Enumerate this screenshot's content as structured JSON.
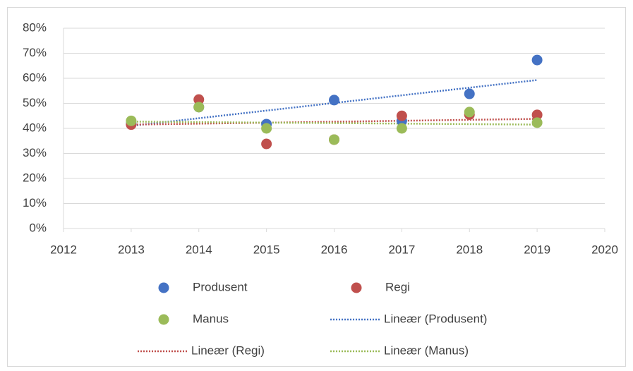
{
  "chart_data": {
    "type": "scatter",
    "xlim": [
      2012,
      2020
    ],
    "xticks": [
      2012,
      2013,
      2014,
      2015,
      2016,
      2017,
      2018,
      2019,
      2020
    ],
    "ylim": [
      0,
      80
    ],
    "yticks": [
      {
        "value": 0,
        "label": "0%"
      },
      {
        "value": 10,
        "label": "10%"
      },
      {
        "value": 20,
        "label": "20%"
      },
      {
        "value": 30,
        "label": "30%"
      },
      {
        "value": 40,
        "label": "40%"
      },
      {
        "value": 50,
        "label": "50%"
      },
      {
        "value": 60,
        "label": "60%"
      },
      {
        "value": 70,
        "label": "70%"
      },
      {
        "value": 80,
        "label": "80%"
      }
    ],
    "grid": true,
    "x": [
      2013,
      2014,
      2015,
      2016,
      2017,
      2018,
      2019
    ],
    "series": [
      {
        "name": "Produsent",
        "color": "#4472c4",
        "values": [
          42,
          48.5,
          41.7,
          51.3,
          43,
          53.8,
          67.3
        ]
      },
      {
        "name": "Regi",
        "color": "#c0504d",
        "values": [
          41.5,
          51.5,
          33.8,
          35.5,
          45,
          45.5,
          45.4
        ]
      },
      {
        "name": "Manus",
        "color": "#9bbb59",
        "values": [
          43,
          48.5,
          40,
          35.5,
          40,
          46.5,
          42.3
        ]
      }
    ],
    "trendlines": [
      {
        "name": "Lineær (Produsent)",
        "color": "#4472c4",
        "x": [
          2013,
          2019
        ],
        "values": [
          41,
          59.3
        ]
      },
      {
        "name": "Lineær (Regi)",
        "color": "#c0504d",
        "x": [
          2013,
          2019
        ],
        "values": [
          41.5,
          43.8
        ]
      },
      {
        "name": "Lineær (Manus)",
        "color": "#9bbb59",
        "x": [
          2013,
          2019
        ],
        "values": [
          42.7,
          41.5
        ]
      }
    ],
    "legend": "bottom"
  }
}
